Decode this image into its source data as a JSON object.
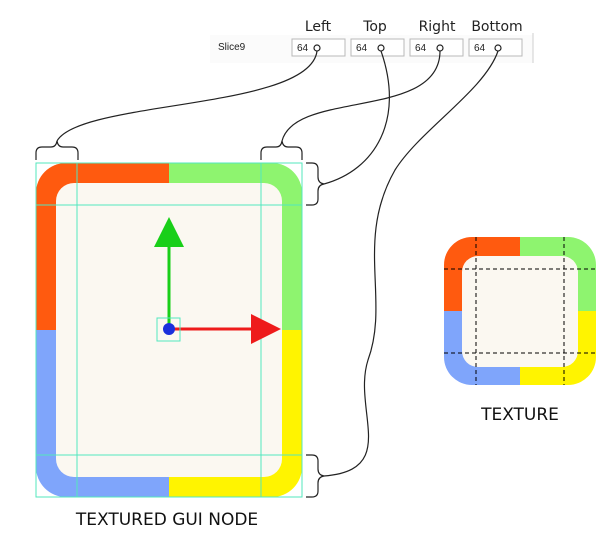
{
  "inspector": {
    "row_label": "Slice9",
    "fields": [
      {
        "header": "Left",
        "value": "64"
      },
      {
        "header": "Top",
        "value": "64"
      },
      {
        "header": "Right",
        "value": "64"
      },
      {
        "header": "Bottom",
        "value": "64"
      }
    ]
  },
  "captions": {
    "node": "TEXTURED GUI NODE",
    "texture": "TEXTURE"
  },
  "colors": {
    "top_left": "#ff5a0f",
    "top_right": "#8ef46f",
    "bottom_left": "#7fa5fb",
    "bottom_right": "#fff400",
    "center": "#fbf8f1",
    "slice_guides": "#53e7be",
    "axis_y": "#19cf19",
    "axis_x": "#ee1b1b",
    "pivot": "#1a2fdc"
  }
}
